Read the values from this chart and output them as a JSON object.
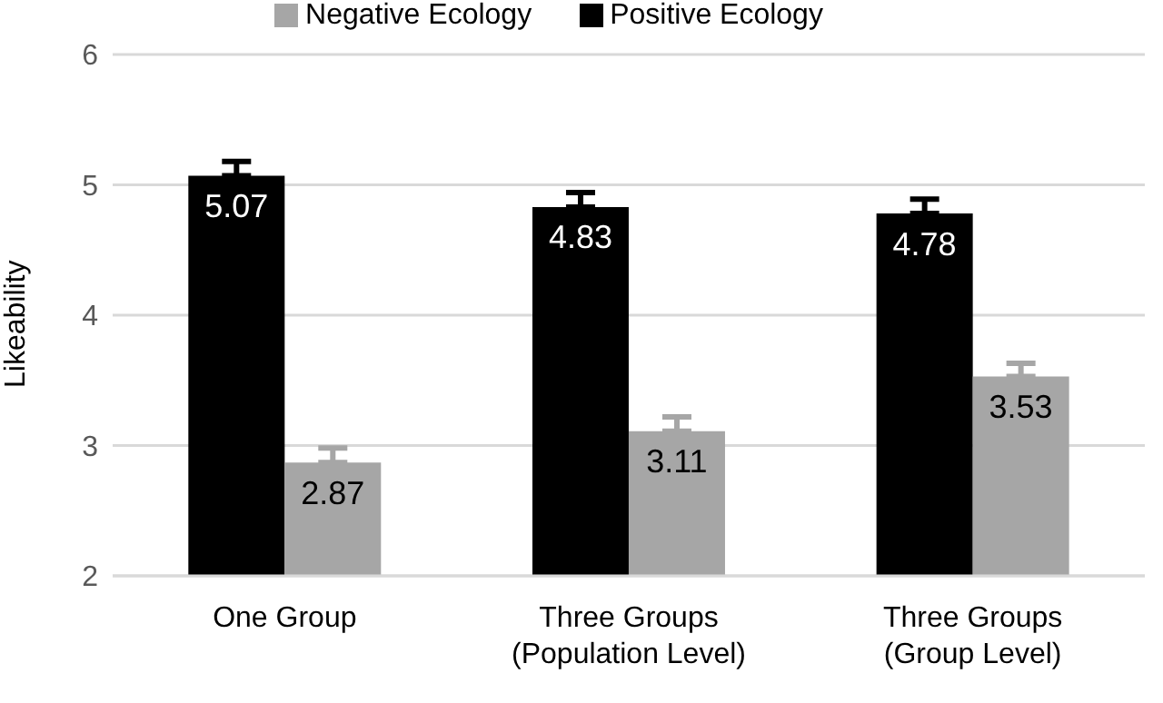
{
  "chart_data": {
    "type": "bar",
    "ylabel": "Likeability",
    "categories": [
      "One Group",
      "Three Groups\n(Population Level)",
      "Three Groups\n(Group Level)"
    ],
    "series": [
      {
        "name": "Positive Ecology",
        "color": "#000000",
        "values": [
          5.07,
          4.83,
          4.78
        ],
        "errors": [
          [
            5.07,
            5.18
          ],
          [
            4.83,
            4.94
          ],
          [
            4.78,
            4.89
          ]
        ]
      },
      {
        "name": "Negative Ecology",
        "color": "#a6a6a6",
        "values": [
          2.87,
          3.11,
          3.53
        ],
        "errors": [
          [
            2.87,
            2.98
          ],
          [
            3.11,
            3.22
          ],
          [
            3.53,
            3.63
          ]
        ]
      }
    ],
    "ylim": [
      2,
      6
    ],
    "yticks": [
      2,
      3,
      4,
      5,
      6
    ],
    "grid": "y",
    "legend": "top",
    "data_labels": true
  }
}
